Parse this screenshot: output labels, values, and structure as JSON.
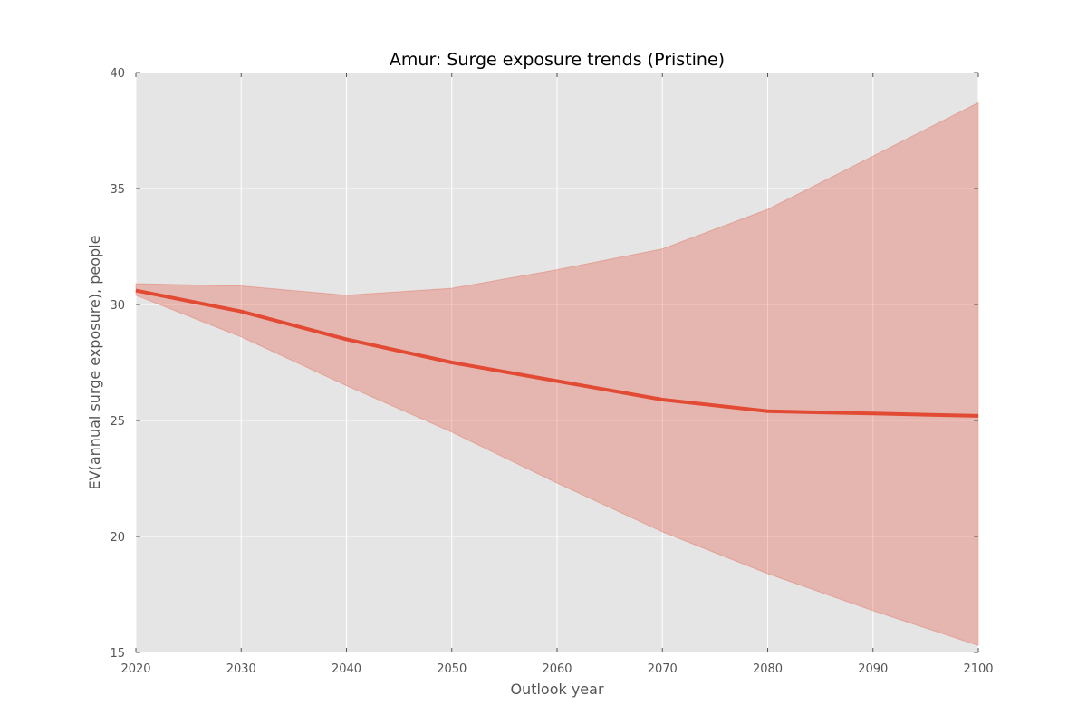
{
  "chart_data": {
    "type": "line",
    "title": "Amur: Surge exposure trends (Pristine)",
    "xlabel": "Outlook year",
    "ylabel": "EV(annual surge exposure), people",
    "xlim": [
      2020,
      2100
    ],
    "ylim": [
      15,
      40
    ],
    "xticks": [
      2020,
      2030,
      2040,
      2050,
      2060,
      2070,
      2080,
      2090,
      2100
    ],
    "yticks": [
      15,
      20,
      25,
      30,
      35,
      40
    ],
    "grid": true,
    "x": [
      2020,
      2030,
      2040,
      2050,
      2060,
      2070,
      2080,
      2090,
      2100
    ],
    "series": [
      {
        "values": [
          30.6,
          29.7,
          28.5,
          27.5,
          26.7,
          25.9,
          25.4,
          25.3,
          25.2
        ],
        "upper": [
          30.9,
          30.8,
          30.4,
          30.7,
          31.5,
          32.4,
          34.1,
          36.4,
          38.7
        ],
        "lower": [
          30.4,
          28.6,
          26.5,
          24.5,
          22.3,
          20.2,
          18.4,
          16.8,
          15.3
        ],
        "color": "#e24a33"
      }
    ],
    "colors": {
      "plot_background": "#e5e5e5",
      "grid": "#ffffff",
      "band": "#e24a33",
      "line": "#e24a33"
    }
  }
}
